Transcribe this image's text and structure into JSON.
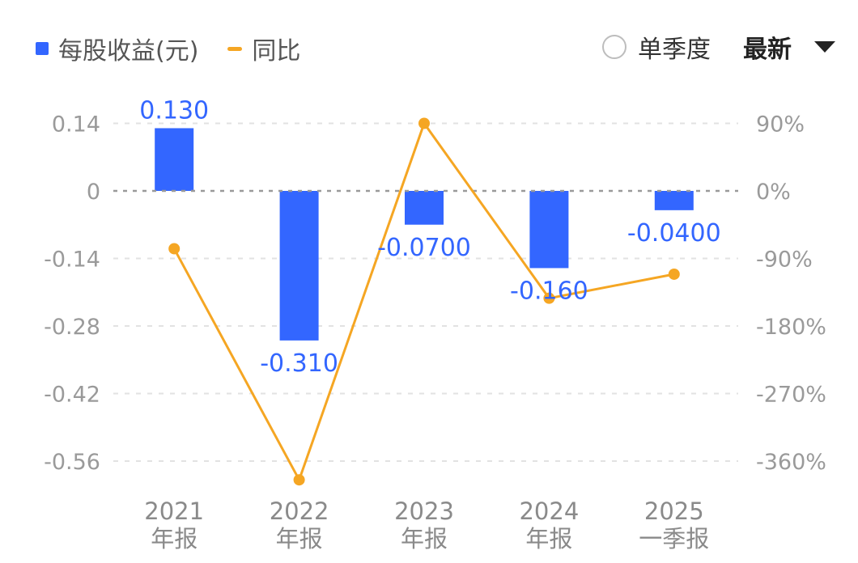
{
  "legend": {
    "bar_label": "每股收益(元)",
    "line_label": "同比"
  },
  "controls": {
    "radio_label": "单季度",
    "dropdown_label": "最新"
  },
  "colors": {
    "bar": "#3366ff",
    "line": "#f5a623",
    "grid": "#e2e2e2",
    "zero": "#9a9a9a"
  },
  "chart_data": {
    "type": "bar",
    "categories": [
      [
        "2021",
        "年报"
      ],
      [
        "2022",
        "年报"
      ],
      [
        "2023",
        "年报"
      ],
      [
        "2024",
        "年报"
      ],
      [
        "2025",
        "一季报"
      ]
    ],
    "series": [
      {
        "name": "每股收益(元)",
        "type": "bar",
        "axis": "left",
        "values": [
          0.13,
          -0.31,
          -0.07,
          -0.16,
          -0.04
        ],
        "labels": [
          "0.130",
          "-0.310",
          "-0.0700",
          "-0.160",
          "-0.0400"
        ]
      },
      {
        "name": "同比",
        "type": "line",
        "axis": "right",
        "values": [
          -77,
          -385,
          90,
          -143,
          -111
        ]
      }
    ],
    "left_axis": {
      "ticks": [
        0.14,
        0,
        -0.14,
        -0.28,
        -0.42,
        -0.56
      ],
      "tick_labels": [
        "0.14",
        "0",
        "-0.14",
        "-0.28",
        "-0.42",
        "-0.56"
      ]
    },
    "right_axis": {
      "ticks": [
        90,
        0,
        -90,
        -180,
        -270,
        -360
      ],
      "tick_labels": [
        "90%",
        "0%",
        "-90%",
        "-180%",
        "-270%",
        "-360%"
      ]
    },
    "grid": true
  }
}
